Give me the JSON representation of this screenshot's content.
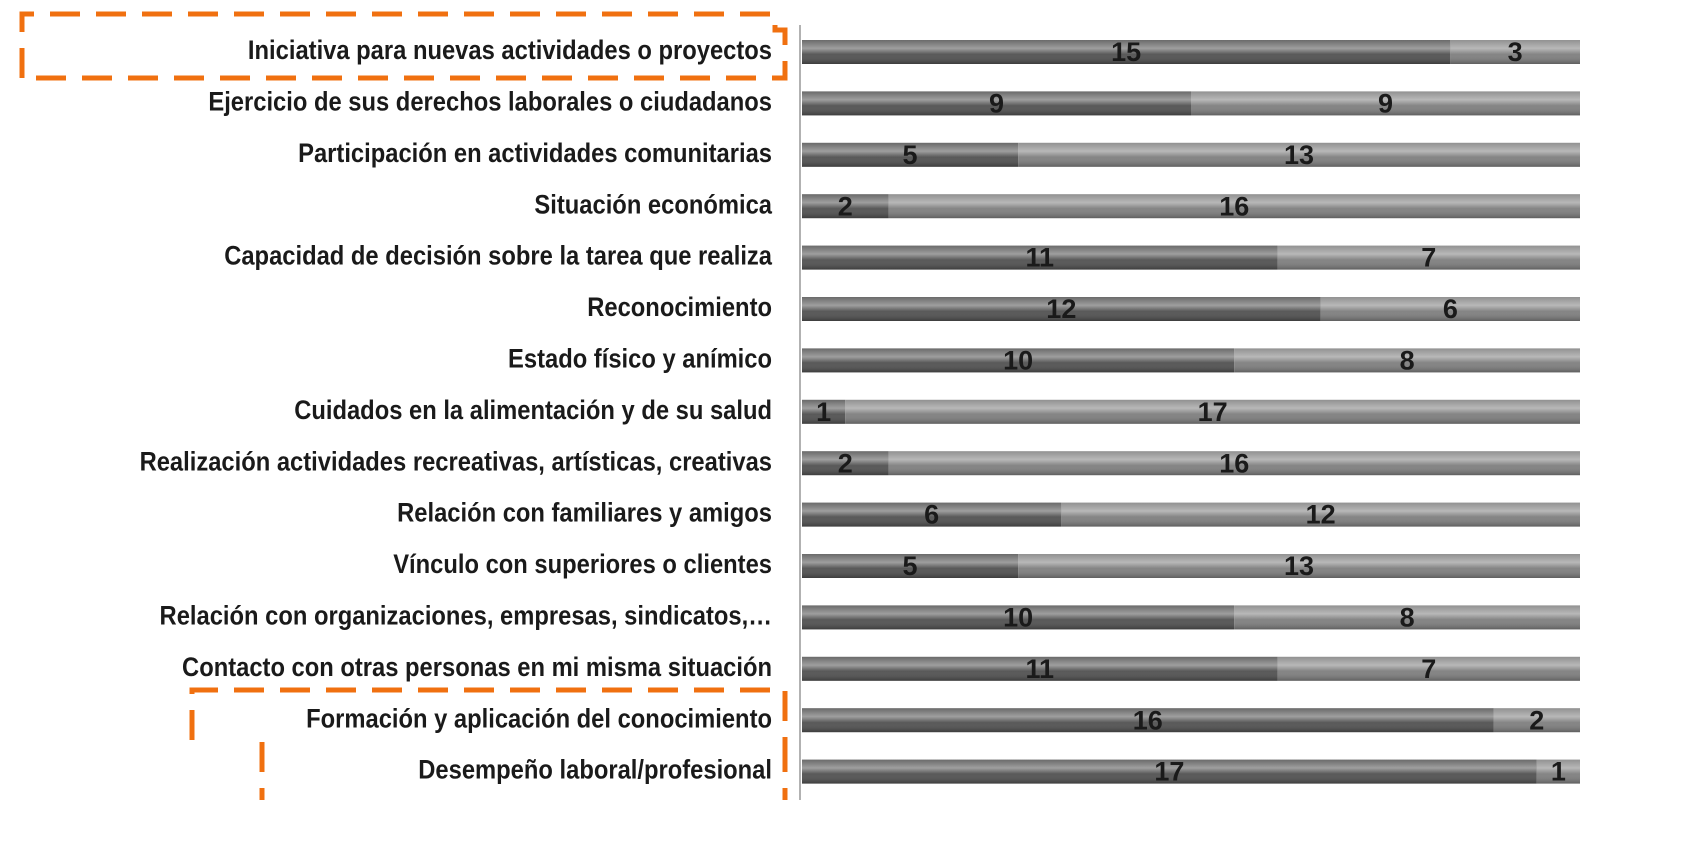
{
  "chart_data": {
    "type": "stacked_bar_horizontal",
    "categories": [
      "Iniciativa para nuevas actividades o proyectos",
      "Ejercicio de sus derechos laborales o ciudadanos",
      "Participación en actividades comunitarias",
      "Situación económica",
      "Capacidad de decisión sobre la tarea que realiza",
      "Reconocimiento",
      "Estado físico y anímico",
      "Cuidados en la alimentación y de su salud",
      "Realización actividades recreativas, artísticas, creativas",
      "Relación con familiares y amigos",
      "Vínculo con superiores o clientes",
      "Relación con organizaciones, empresas, sindicatos,…",
      "Contacto con otras personas en mi misma situación",
      "Formación y aplicación del conocimiento",
      "Desempeño laboral/profesional"
    ],
    "series": [
      {
        "color": "#505050",
        "values": [
          15,
          9,
          5,
          2,
          11,
          12,
          10,
          1,
          2,
          6,
          5,
          10,
          11,
          16,
          17
        ]
      },
      {
        "color": "#7e7e7e",
        "values": [
          3,
          9,
          13,
          16,
          7,
          6,
          8,
          17,
          16,
          12,
          13,
          8,
          7,
          2,
          1
        ]
      }
    ],
    "xlim": [
      0,
      18
    ]
  }
}
